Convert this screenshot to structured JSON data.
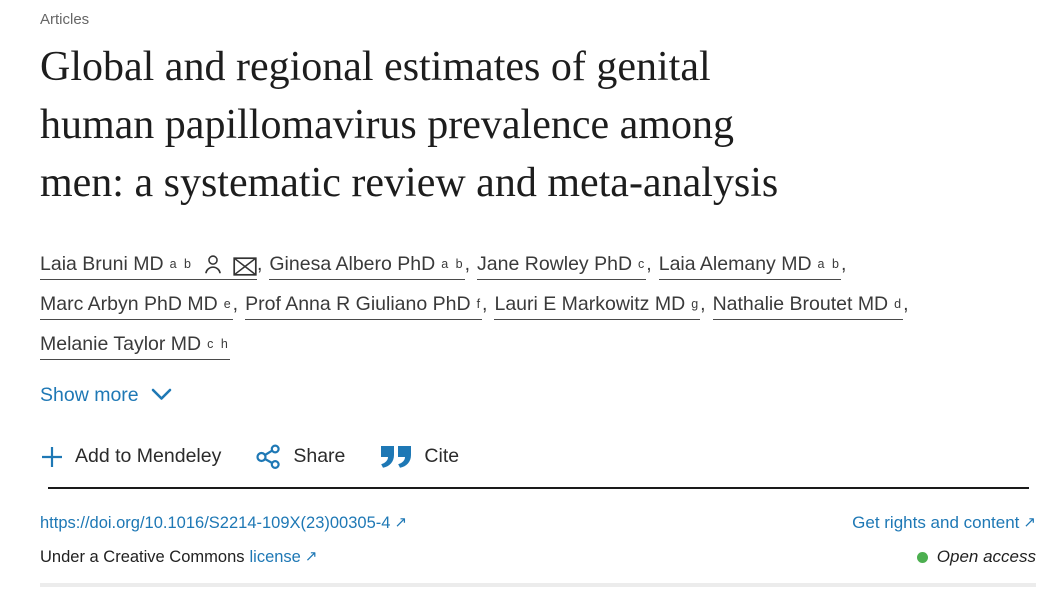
{
  "colors": {
    "link_blue": "#1e78b5",
    "text_dark": "#212121",
    "author_text": "#3a3a3a",
    "label_gray": "#666666",
    "open_access_green": "#4caf50",
    "divider_dark": "#1a1a1a",
    "divider_light": "#ececec"
  },
  "header": {
    "section_label": "Articles",
    "title_lines": [
      "Global and regional estimates of genital",
      "human papillomavirus prevalence among",
      "men: a systematic review and meta-analysis"
    ]
  },
  "authors": {
    "lines": [
      [
        {
          "name": "Laia Bruni MD",
          "sup": "a b",
          "icons": [
            "person",
            "envelope"
          ],
          "comma": true
        },
        {
          "name": "Ginesa Albero PhD",
          "sup": "a b",
          "icons": [],
          "comma": true
        },
        {
          "name": "Jane Rowley PhD",
          "sup": "c",
          "icons": [],
          "comma": true
        },
        {
          "name": "Laia Alemany MD",
          "sup": "a b",
          "icons": [],
          "comma": true
        }
      ],
      [
        {
          "name": "Marc Arbyn PhD MD",
          "sup": "e",
          "icons": [],
          "comma": true
        },
        {
          "name": "Prof Anna R Giuliano PhD",
          "sup": "f",
          "icons": [],
          "comma": true
        },
        {
          "name": "Lauri E Markowitz MD",
          "sup": "g",
          "icons": [],
          "comma": true
        },
        {
          "name": "Nathalie Broutet MD",
          "sup": "d",
          "icons": [],
          "comma": true
        }
      ],
      [
        {
          "name": "Melanie Taylor MD",
          "sup": "c h",
          "icons": [],
          "comma": false
        }
      ]
    ]
  },
  "show_more": {
    "label": "Show more"
  },
  "actions": {
    "add_to_mendeley": "Add to Mendeley",
    "share": "Share",
    "cite": "Cite"
  },
  "links": {
    "doi": "https://doi.org/10.1016/S2214-109X(23)00305-4",
    "rights": "Get rights and content",
    "license_prefix": "Under a Creative Commons",
    "license_link": "license",
    "external_arrow": "↗"
  },
  "open_access": {
    "label": "Open access"
  }
}
